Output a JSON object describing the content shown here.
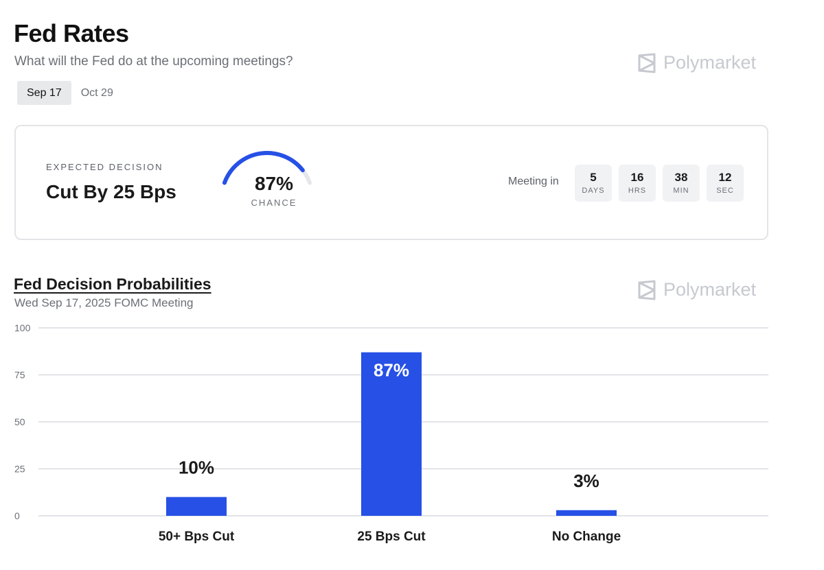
{
  "header": {
    "title": "Fed Rates",
    "subtitle": "What will the Fed do at the upcoming meetings?",
    "brand": "Polymarket"
  },
  "tabs": [
    {
      "label": "Sep 17",
      "active": true
    },
    {
      "label": "Oct 29",
      "active": false
    }
  ],
  "decision": {
    "label": "EXPECTED DECISION",
    "value": "Cut By 25 Bps",
    "chance_value": "87%",
    "chance_label": "CHANCE",
    "chance_fraction": 0.87
  },
  "meeting": {
    "label": "Meeting in",
    "countdown": [
      {
        "value": "5",
        "unit": "DAYS"
      },
      {
        "value": "16",
        "unit": "HRS"
      },
      {
        "value": "38",
        "unit": "MIN"
      },
      {
        "value": "12",
        "unit": "SEC"
      }
    ]
  },
  "colors": {
    "accent": "#2650e6",
    "grid": "#d9dbe0",
    "gauge_track": "#e6e7ea",
    "brand": "#c6c9cf"
  },
  "chart_section": {
    "title": "Fed Decision Probabilities",
    "subtitle": "Wed Sep 17, 2025 FOMC Meeting",
    "brand": "Polymarket"
  },
  "chart_data": {
    "type": "bar",
    "title": "Fed Decision Probabilities",
    "subtitle": "Wed Sep 17, 2025 FOMC Meeting",
    "categories": [
      "50+ Bps Cut",
      "25 Bps Cut",
      "No Change"
    ],
    "values": [
      10,
      87,
      3
    ],
    "value_labels": [
      "10%",
      "87%",
      "3%"
    ],
    "ylim": [
      0,
      100
    ],
    "yticks": [
      0,
      25,
      50,
      75,
      100
    ],
    "grid": true,
    "xlabel": "",
    "ylabel": ""
  }
}
